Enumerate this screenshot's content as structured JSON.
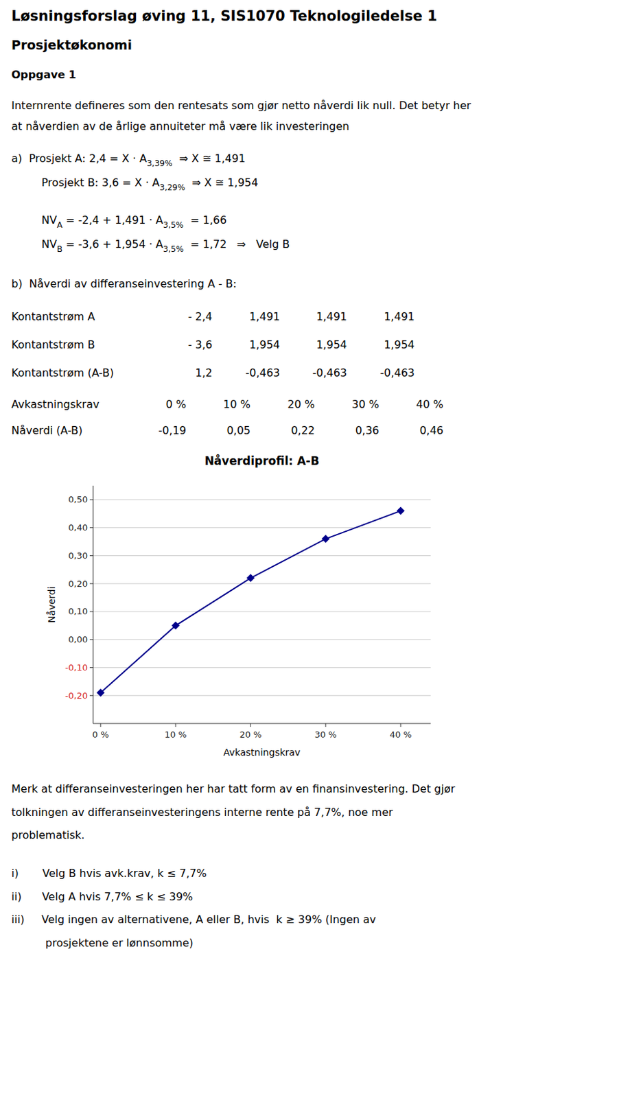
{
  "title": "Løsningsforslag øving 11, SIS1070 Teknologiledelse 1",
  "section": "Prosjektøkonomi",
  "task": "Oppgave 1",
  "intro": [
    "Internrente defineres som den rentesats som gjør netto nåverdi lik null. Det betyr her",
    "at nåverdien av de årlige annuiteter må være lik investeringen"
  ],
  "worked_lines": [
    [
      {
        "text": "a)  Prosjekt A: 2,4 = X · A"
      },
      {
        "sub": "3,39%"
      },
      {
        "text": "  ⇒ X ≅ 1,491"
      }
    ],
    [
      {
        "text": "Prosjekt B: 3,6 = X · A"
      },
      {
        "sub": "3,29%"
      },
      {
        "text": "  ⇒ X ≅ 1,954"
      }
    ],
    [
      {
        "text": "NV"
      },
      {
        "sub": "A"
      },
      {
        "text": " = -2,4 + 1,491 · A"
      },
      {
        "sub": "3,5%"
      },
      {
        "text": "  = 1,66"
      }
    ],
    [
      {
        "text": "NV"
      },
      {
        "sub": "B"
      },
      {
        "text": " = -3,6 + 1,954 · A"
      },
      {
        "sub": "3,5%"
      },
      {
        "text": "  = 1,72   ⇒   Velg B"
      }
    ]
  ],
  "b_header": "b)  Nåverdi av differanseinvestering A - B:",
  "table": [
    [
      "Kontantstrøm A",
      "- 2,4",
      "1,491",
      "1,491",
      "1,491"
    ],
    [
      "Kontantstrøm B",
      "- 3,6",
      "1,954",
      "1,954",
      "1,954"
    ],
    [
      "Kontantstrøm (A-B)",
      "1,2",
      "-0,463",
      "-0,463",
      "-0,463"
    ]
  ],
  "rate_table": [
    [
      "Avkastningskrav",
      "0 %",
      "10 %",
      "20 %",
      "30 %",
      "40 %"
    ],
    [
      "Nåverdi (A-B)",
      "-0,19",
      "0,05",
      "0,22",
      "0,36",
      "0,46"
    ]
  ],
  "footer": [
    "Merk at differanseinvesteringen her har tatt form av en finansinvestering. Det gjør",
    "tolkningen av differanseinvesteringens interne rente på 7,7%, noe mer",
    "problematisk.",
    "i)       Velg B hvis avk.krav, k ≤ 7,7%",
    "ii)      Velg A hvis 7,7% ≤ k ≤ 39%",
    "iii)     Velg ingen av alternativene, A eller B, hvis  k ≥ 39% (Ingen av",
    "          prosjektene er lønnsomme)"
  ],
  "chart_data": {
    "type": "line",
    "title": "Nåverdiprofil: A-B",
    "xlabel": "Avkastningskrav",
    "ylabel": "Nåverdi",
    "x": [
      0,
      10,
      20,
      30,
      40
    ],
    "values": [
      -0.19,
      0.05,
      0.22,
      0.36,
      0.46
    ],
    "color": "#00008B",
    "marker": "diamond",
    "xlim": [
      -1,
      44
    ],
    "xticks": [
      {
        "value": 0,
        "label": "0 %"
      },
      {
        "value": 10,
        "label": "10 %"
      },
      {
        "value": 20,
        "label": "20 %"
      },
      {
        "value": 30,
        "label": "30 %"
      },
      {
        "value": 40,
        "label": "40 %"
      }
    ],
    "ylim": [
      -0.3,
      0.55
    ],
    "yticks": [
      {
        "value": -0.2,
        "label": "-0,20"
      },
      {
        "value": -0.1,
        "label": "-0,10"
      },
      {
        "value": 0.0,
        "label": "0,00"
      },
      {
        "value": 0.1,
        "label": "0,10"
      },
      {
        "value": 0.2,
        "label": "0,20"
      },
      {
        "value": 0.3,
        "label": "0,30"
      },
      {
        "value": 0.4,
        "label": "0,40"
      },
      {
        "value": 0.5,
        "label": "0,50"
      }
    ],
    "grid": true
  }
}
